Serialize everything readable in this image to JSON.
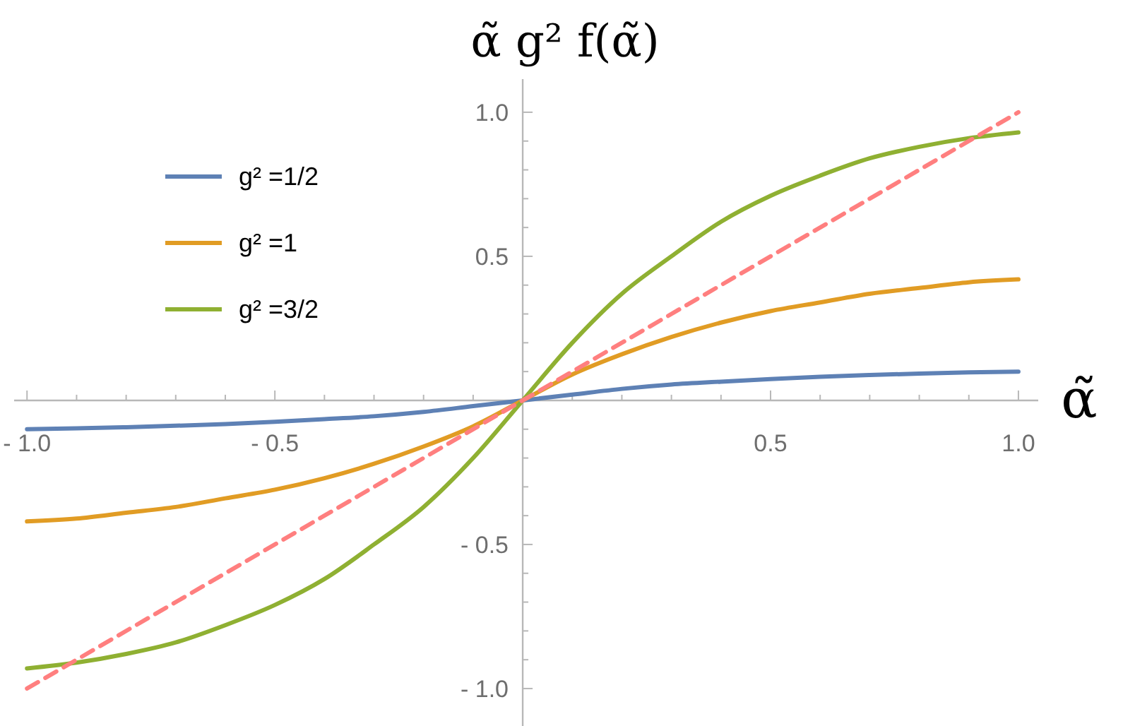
{
  "chart_data": {
    "type": "line",
    "ylabel": "α̃ g² f(α̃)",
    "xlabel": "α̃",
    "x": [
      -1,
      -0.9,
      -0.8,
      -0.7,
      -0.6,
      -0.5,
      -0.4,
      -0.3,
      -0.2,
      -0.1,
      0,
      0.1,
      0.2,
      0.3,
      0.4,
      0.5,
      0.6,
      0.7,
      0.8,
      0.9,
      1
    ],
    "series": [
      {
        "name": "g² =1/2",
        "color": "#5e81b5",
        "values": [
          -0.1,
          -0.097,
          -0.093,
          -0.088,
          -0.082,
          -0.074,
          -0.065,
          -0.055,
          -0.04,
          -0.02,
          0,
          0.02,
          0.04,
          0.055,
          0.065,
          0.074,
          0.082,
          0.088,
          0.093,
          0.097,
          0.1
        ]
      },
      {
        "name": "g² =1",
        "color": "#e19c24",
        "values": [
          -0.42,
          -0.41,
          -0.39,
          -0.37,
          -0.34,
          -0.31,
          -0.27,
          -0.22,
          -0.16,
          -0.09,
          0,
          0.09,
          0.16,
          0.22,
          0.27,
          0.31,
          0.34,
          0.37,
          0.39,
          0.41,
          0.42
        ]
      },
      {
        "name": "g² =3/2",
        "color": "#8fb032",
        "values": [
          -0.93,
          -0.91,
          -0.88,
          -0.84,
          -0.78,
          -0.71,
          -0.62,
          -0.5,
          -0.37,
          -0.2,
          0,
          0.2,
          0.37,
          0.5,
          0.62,
          0.71,
          0.78,
          0.84,
          0.88,
          0.91,
          0.93
        ]
      },
      {
        "color": "#ff7f7f",
        "line_style": "dashed",
        "x": [
          -1,
          1
        ],
        "values": [
          -1,
          1
        ]
      }
    ],
    "xlim": [
      -1.026,
      1.04
    ],
    "ylim": [
      -1.13,
      1.115
    ],
    "xticks": [
      {
        "value": -1,
        "label": "- 1.0"
      },
      {
        "value": -0.9,
        "label": null
      },
      {
        "value": -0.8,
        "label": null
      },
      {
        "value": -0.7,
        "label": null
      },
      {
        "value": -0.6,
        "label": null
      },
      {
        "value": -0.5,
        "label": "- 0.5"
      },
      {
        "value": -0.4,
        "label": null
      },
      {
        "value": -0.3,
        "label": null
      },
      {
        "value": -0.2,
        "label": null
      },
      {
        "value": -0.1,
        "label": null
      },
      {
        "value": 0.1,
        "label": null
      },
      {
        "value": 0.2,
        "label": null
      },
      {
        "value": 0.3,
        "label": null
      },
      {
        "value": 0.4,
        "label": null
      },
      {
        "value": 0.5,
        "label": "0.5"
      },
      {
        "value": 0.6,
        "label": null
      },
      {
        "value": 0.7,
        "label": null
      },
      {
        "value": 0.8,
        "label": null
      },
      {
        "value": 0.9,
        "label": null
      },
      {
        "value": 1,
        "label": "1.0"
      }
    ],
    "yticks": [
      {
        "value": -1,
        "label": "- 1.0"
      },
      {
        "value": -0.9,
        "label": null
      },
      {
        "value": -0.8,
        "label": null
      },
      {
        "value": -0.7,
        "label": null
      },
      {
        "value": -0.6,
        "label": null
      },
      {
        "value": -0.5,
        "label": "- 0.5"
      },
      {
        "value": -0.4,
        "label": null
      },
      {
        "value": -0.3,
        "label": null
      },
      {
        "value": -0.2,
        "label": null
      },
      {
        "value": -0.1,
        "label": null
      },
      {
        "value": 0.1,
        "label": null
      },
      {
        "value": 0.2,
        "label": null
      },
      {
        "value": 0.3,
        "label": null
      },
      {
        "value": 0.4,
        "label": null
      },
      {
        "value": 0.5,
        "label": "0.5"
      },
      {
        "value": 0.6,
        "label": null
      },
      {
        "value": 0.7,
        "label": null
      },
      {
        "value": 0.8,
        "label": null
      },
      {
        "value": 0.9,
        "label": null
      },
      {
        "value": 1,
        "label": "1.0"
      }
    ],
    "legend": "left",
    "line_style": "solid",
    "marker": "none",
    "grid": false
  }
}
